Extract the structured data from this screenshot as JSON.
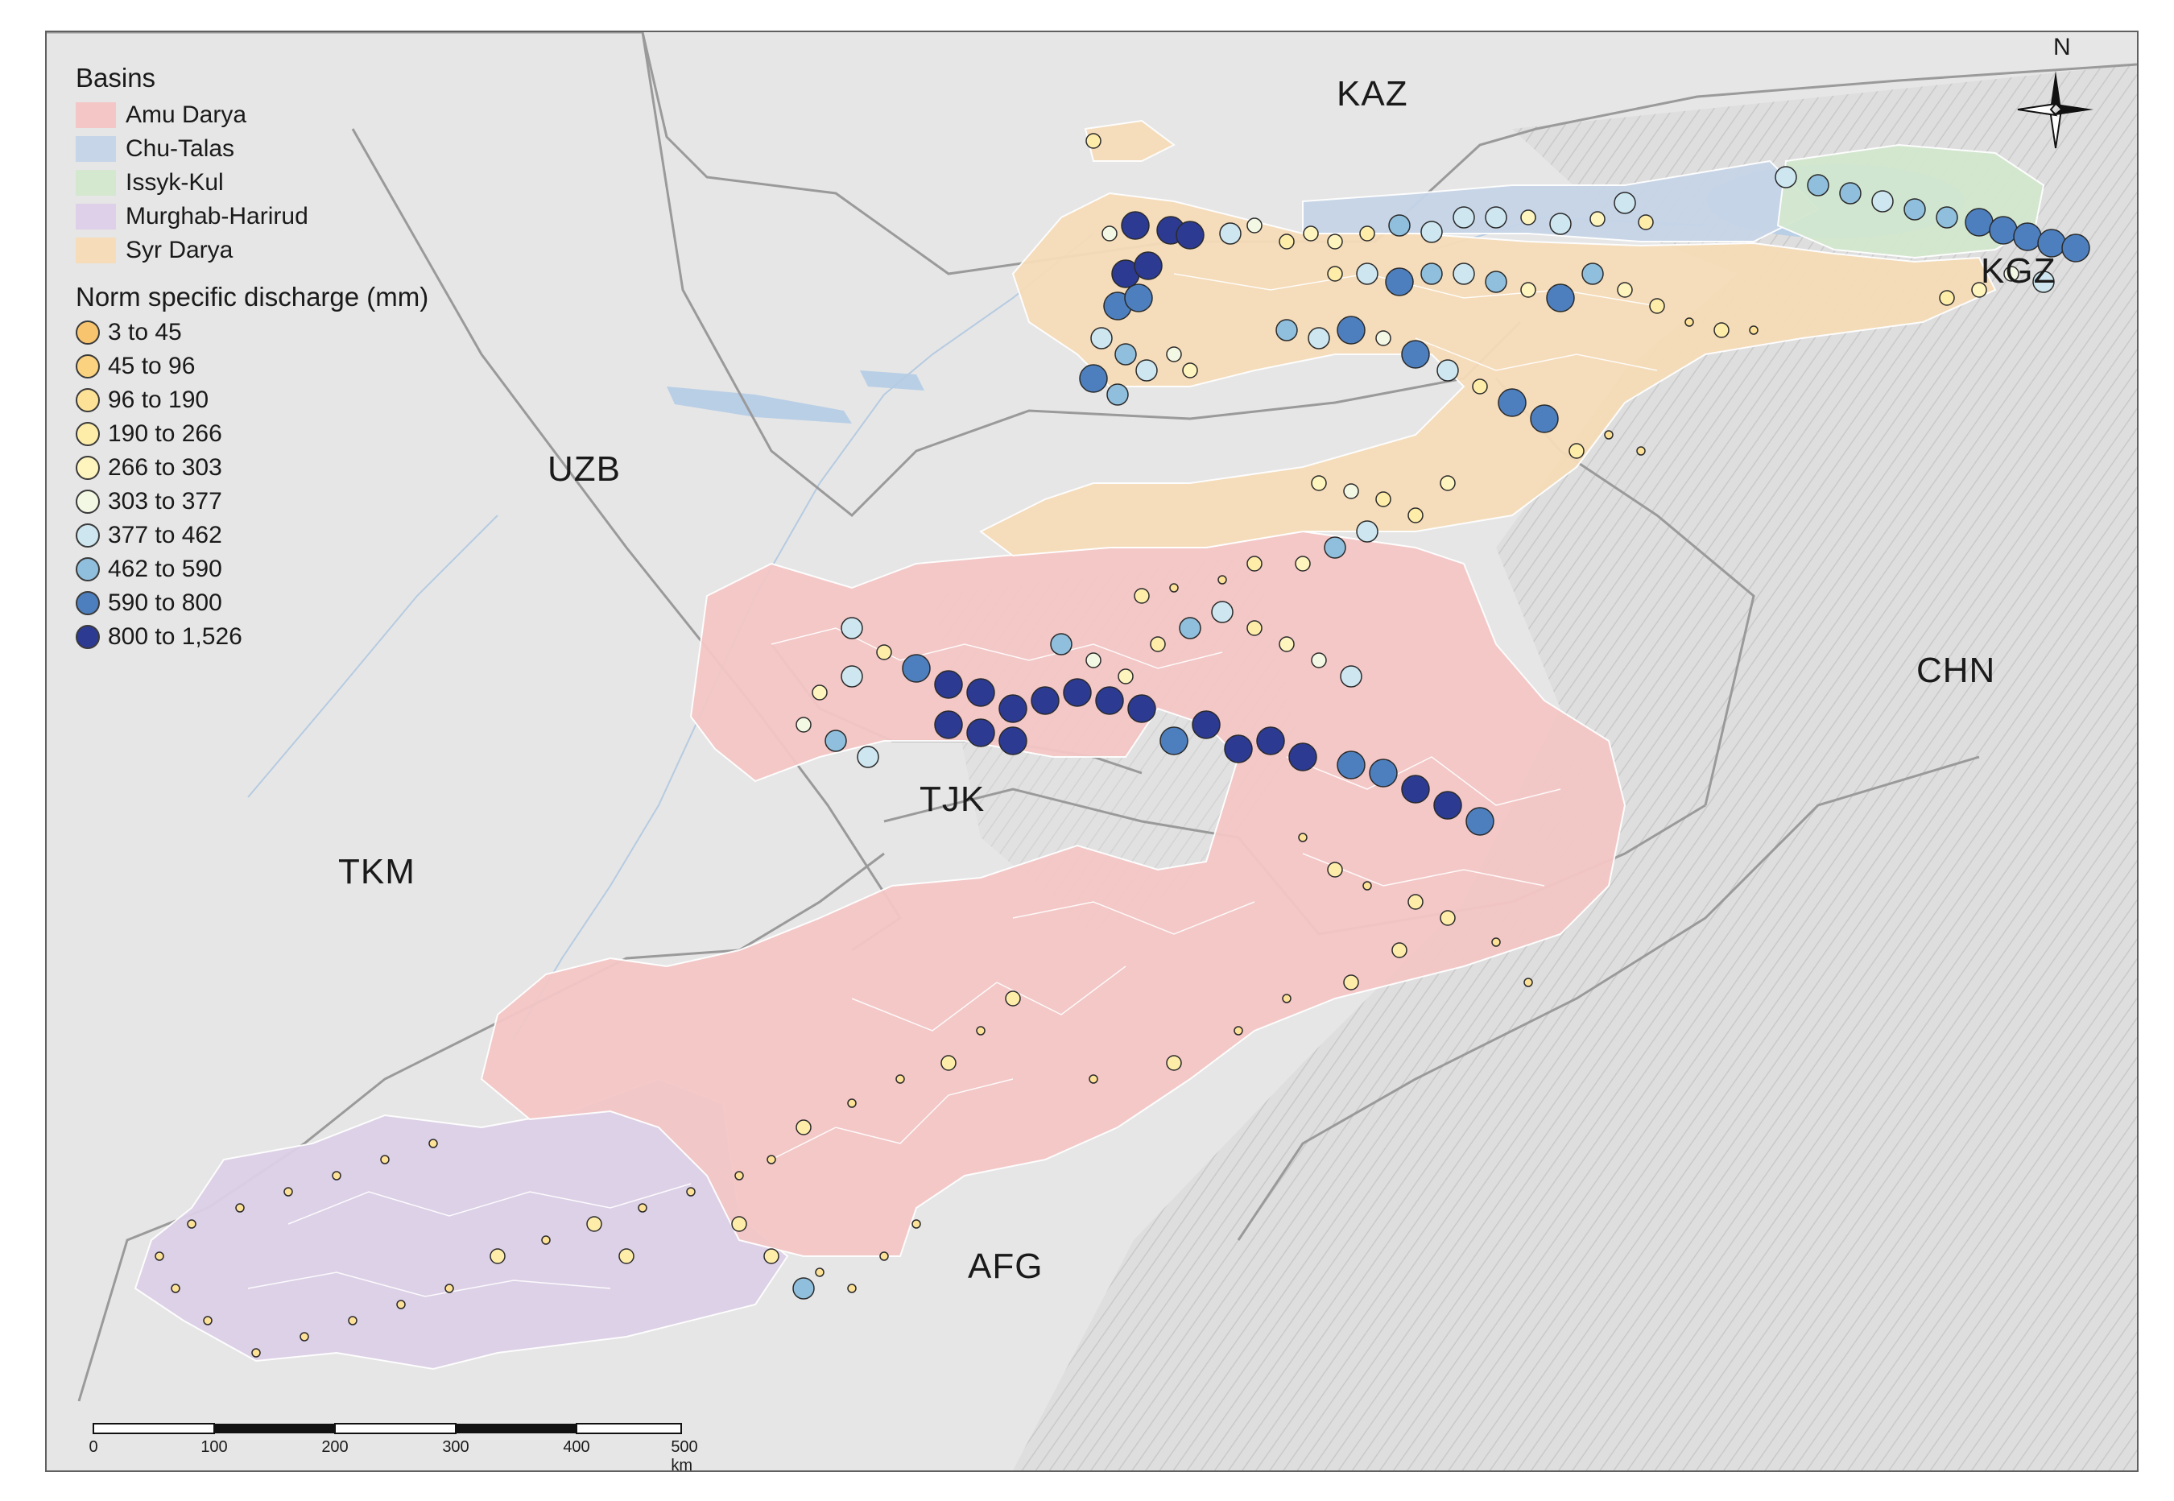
{
  "map": {
    "countries": {
      "kaz": "KAZ",
      "uzb": "UZB",
      "tkm": "TKM",
      "tjk": "TJK",
      "kgz": "KGZ",
      "chn": "CHN",
      "afg": "AFG"
    },
    "north_label": "N",
    "scale": {
      "unit_label": "500 km",
      "ticks": [
        "0",
        "100",
        "200",
        "300",
        "400"
      ]
    }
  },
  "legend": {
    "basins_title": "Basins",
    "basins": [
      {
        "label": "Amu Darya",
        "color": "#f4c7c6"
      },
      {
        "label": "Chu-Talas",
        "color": "#c6d5e8"
      },
      {
        "label": "Issyk-Kul",
        "color": "#d3e8cf"
      },
      {
        "label": "Murghab-Harirud",
        "color": "#ddd0e8"
      },
      {
        "label": "Syr Darya",
        "color": "#f6dcb8"
      }
    ],
    "discharge_title": "Norm specific discharge (mm)",
    "discharge_classes": [
      {
        "label": "3 to 45",
        "color": "#f9c46e"
      },
      {
        "label": "45 to 96",
        "color": "#fbd27f"
      },
      {
        "label": "96 to 190",
        "color": "#fde196"
      },
      {
        "label": "190 to 266",
        "color": "#feeda9"
      },
      {
        "label": "266 to 303",
        "color": "#fef4bd"
      },
      {
        "label": "303 to 377",
        "color": "#f3f8e4"
      },
      {
        "label": "377 to 462",
        "color": "#cde6f0"
      },
      {
        "label": "462 to 590",
        "color": "#8fbfdc"
      },
      {
        "label": "590 to 800",
        "color": "#4d7fbe"
      },
      {
        "label": "800 to 1,526",
        "color": "#2c3a92"
      }
    ]
  }
}
